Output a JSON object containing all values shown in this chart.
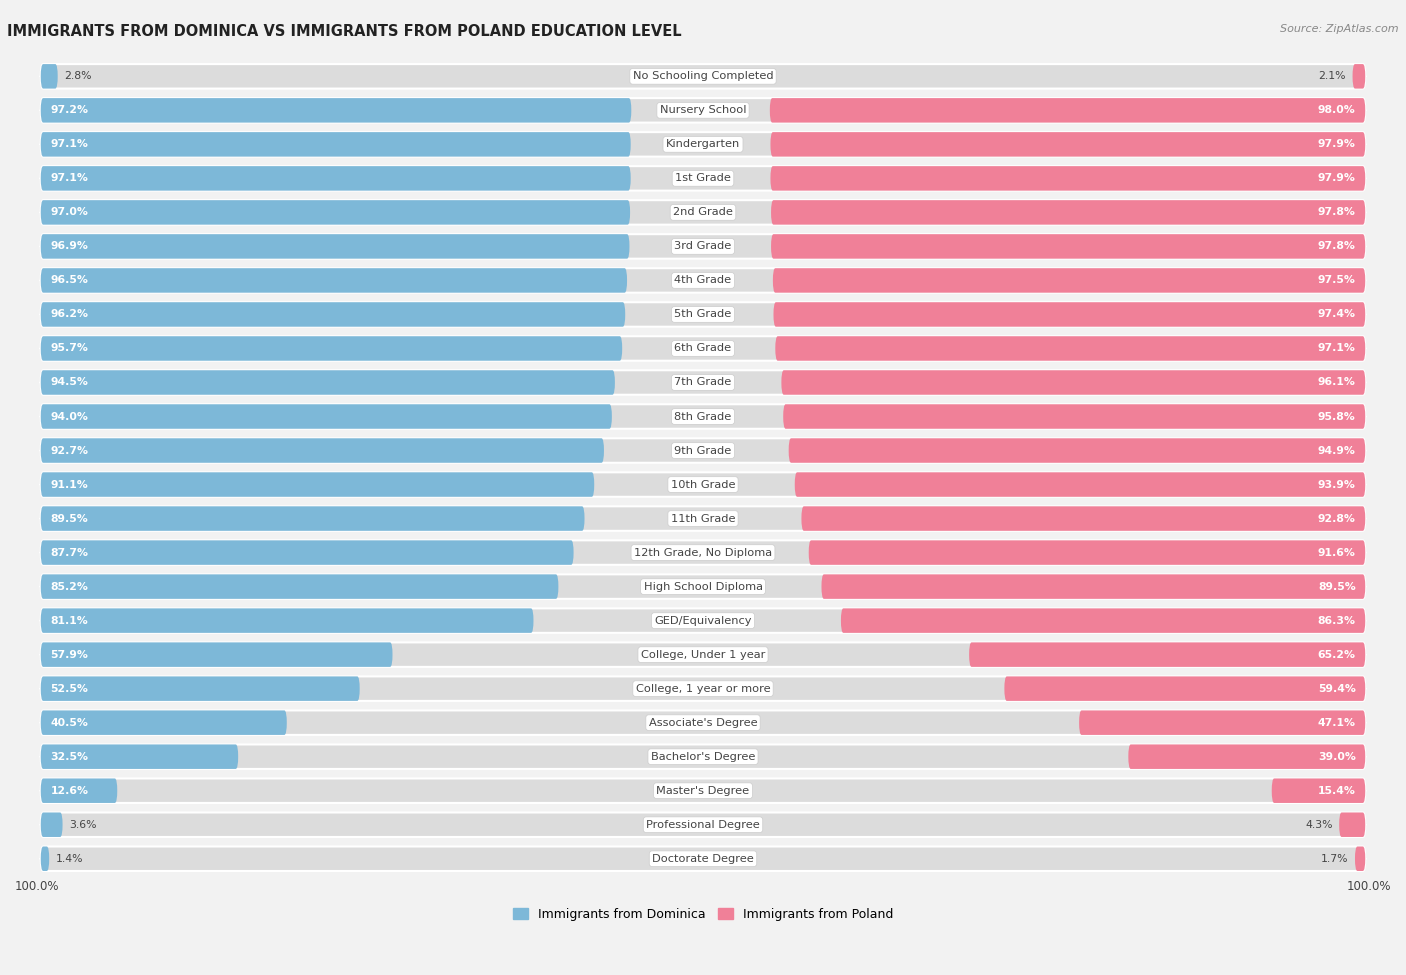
{
  "title": "IMMIGRANTS FROM DOMINICA VS IMMIGRANTS FROM POLAND EDUCATION LEVEL",
  "source": "Source: ZipAtlas.com",
  "categories": [
    "No Schooling Completed",
    "Nursery School",
    "Kindergarten",
    "1st Grade",
    "2nd Grade",
    "3rd Grade",
    "4th Grade",
    "5th Grade",
    "6th Grade",
    "7th Grade",
    "8th Grade",
    "9th Grade",
    "10th Grade",
    "11th Grade",
    "12th Grade, No Diploma",
    "High School Diploma",
    "GED/Equivalency",
    "College, Under 1 year",
    "College, 1 year or more",
    "Associate's Degree",
    "Bachelor's Degree",
    "Master's Degree",
    "Professional Degree",
    "Doctorate Degree"
  ],
  "dominica_values": [
    2.8,
    97.2,
    97.1,
    97.1,
    97.0,
    96.9,
    96.5,
    96.2,
    95.7,
    94.5,
    94.0,
    92.7,
    91.1,
    89.5,
    87.7,
    85.2,
    81.1,
    57.9,
    52.5,
    40.5,
    32.5,
    12.6,
    3.6,
    1.4
  ],
  "poland_values": [
    2.1,
    98.0,
    97.9,
    97.9,
    97.8,
    97.8,
    97.5,
    97.4,
    97.1,
    96.1,
    95.8,
    94.9,
    93.9,
    92.8,
    91.6,
    89.5,
    86.3,
    65.2,
    59.4,
    47.1,
    39.0,
    15.4,
    4.3,
    1.7
  ],
  "dominica_color": "#7DB8D8",
  "poland_color": "#F08098",
  "bg_color": "#F2F2F2",
  "bar_bg_color": "#DCDCDC",
  "label_color": "#444444",
  "value_color_inside": "#FFFFFF",
  "value_color_outside": "#444444",
  "title_color": "#222222",
  "legend_dominica": "Immigrants from Dominica",
  "legend_poland": "Immigrants from Poland",
  "center_label_bg": "#FFFFFF",
  "row_sep_color": "#FFFFFF"
}
